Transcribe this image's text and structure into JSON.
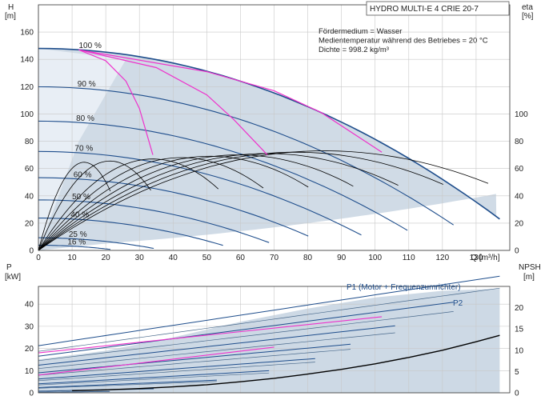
{
  "chart_data": [
    {
      "type": "line",
      "id": "head",
      "title": "HYDRO MULTI-E 4 CRIE 20-7",
      "notes": [
        "Fördermedium = Wasser",
        "Medientemperatur während des Betriebes = 20 °C",
        "Dichte = 998.2 kg/m³"
      ],
      "xlabel": "Q [m³/h]",
      "ylabel_left": [
        "H",
        "[m]"
      ],
      "ylabel_right": [
        "eta",
        "[%]"
      ],
      "xlim": [
        0,
        140
      ],
      "ylim": [
        0,
        180
      ],
      "xticks": [
        0,
        10,
        20,
        30,
        40,
        50,
        60,
        70,
        80,
        90,
        100,
        110,
        120,
        130
      ],
      "yticks_left": [
        0,
        20,
        40,
        60,
        80,
        100,
        120,
        140,
        160
      ],
      "yticks_right": [
        0,
        20,
        40,
        60,
        80,
        100
      ],
      "yticks_right_scale": 1,
      "colors": {
        "envelope": "#cdd9e5",
        "head": "#1f4e8c",
        "eta": "#000000",
        "system": "#ee33cc",
        "grid": "#c8c8c8"
      },
      "speed_curves": [
        {
          "label": "100 %",
          "speed": 1.0
        },
        {
          "label": "90 %",
          "speed": 0.9
        },
        {
          "label": "80 %",
          "speed": 0.8
        },
        {
          "label": "70 %",
          "speed": 0.7
        },
        {
          "label": "60 %",
          "speed": 0.6
        },
        {
          "label": "50 %",
          "speed": 0.5
        },
        {
          "label": "40 %",
          "speed": 0.4
        },
        {
          "label": "25 %",
          "speed": 0.25
        },
        {
          "label": "16 %",
          "speed": 0.16
        }
      ],
      "head_model": {
        "h0": 148,
        "qmax": 137,
        "hmin": 23
      },
      "system_curves": [
        {
          "x": [
            12,
            20,
            26,
            30,
            34
          ],
          "y": [
            147,
            139,
            124,
            104,
            70
          ]
        },
        {
          "x": [
            12,
            35,
            50,
            58,
            68
          ],
          "y": [
            147,
            134,
            114,
            96,
            70
          ]
        },
        {
          "x": [
            12,
            50,
            70,
            84,
            102
          ],
          "y": [
            147,
            131,
            117,
            101,
            72
          ]
        }
      ]
    },
    {
      "type": "line",
      "id": "power",
      "labels": [
        "P1 (Motor + Frequenzumrichter)",
        "P2"
      ],
      "ylabel_left": [
        "P",
        "[kW]"
      ],
      "ylabel_right": [
        "NPSH",
        "[m]"
      ],
      "xlim": [
        0,
        140
      ],
      "ylim": [
        0,
        48
      ],
      "xticks": [
        0,
        10,
        20,
        30,
        40,
        50,
        60,
        70,
        80,
        90,
        100,
        110,
        120,
        130
      ],
      "yticks_left": [
        0,
        10,
        20,
        30,
        40
      ],
      "yticks_right": [
        0,
        5,
        10,
        15,
        20
      ],
      "p1": {
        "x": [
          0,
          20,
          40,
          60,
          80,
          100,
          120,
          137
        ],
        "y": [
          15,
          19,
          25,
          32,
          38,
          43,
          46,
          47
        ]
      },
      "p2": {
        "x": [
          0,
          20,
          40,
          60,
          80,
          100,
          120,
          137
        ],
        "y": [
          13,
          16,
          22,
          28,
          33,
          38,
          41,
          43
        ]
      },
      "npsh": {
        "x": [
          10,
          20,
          30,
          40,
          50,
          60,
          70,
          80,
          90,
          100,
          110,
          120,
          130,
          137
        ],
        "y": [
          0.5,
          0.7,
          1.0,
          1.4,
          1.9,
          2.6,
          3.4,
          4.4,
          5.5,
          6.8,
          8.3,
          10.0,
          12.0,
          13.5
        ]
      }
    }
  ]
}
